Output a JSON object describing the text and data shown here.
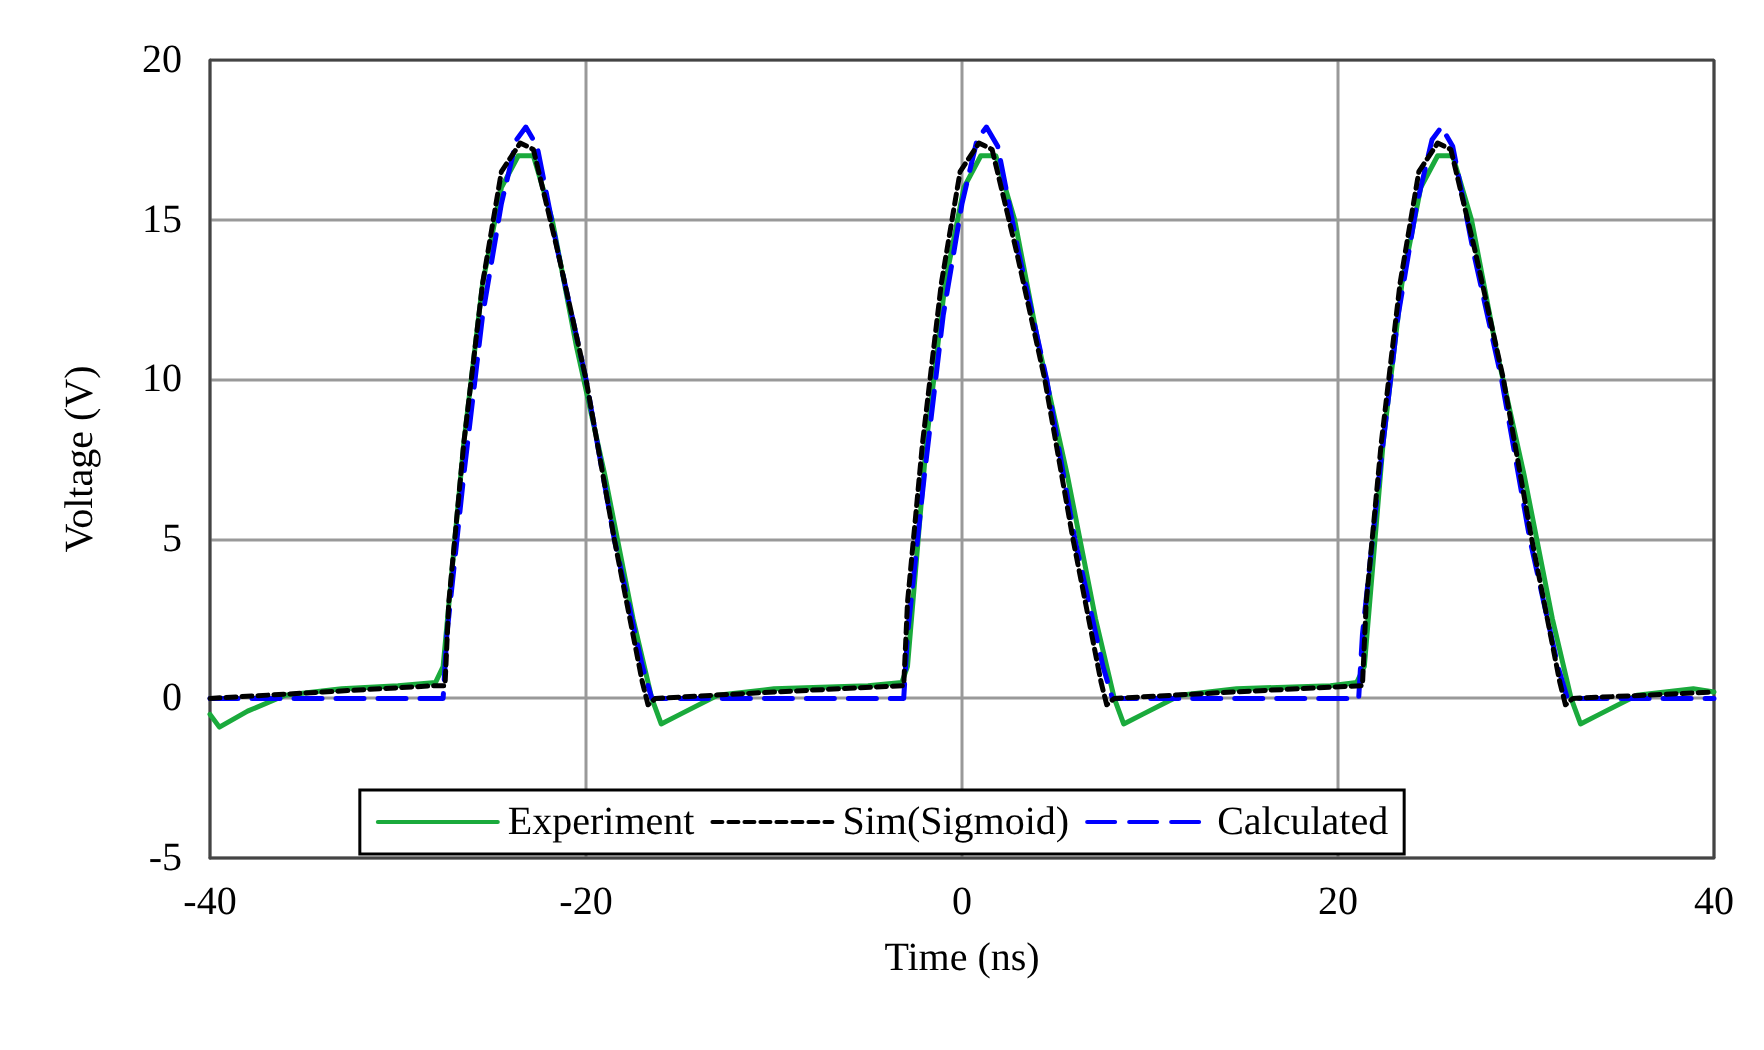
{
  "chart_data": {
    "type": "line",
    "xlabel": "Time (ns)",
    "ylabel": "Voltage (V)",
    "xlim": [
      -40,
      40
    ],
    "xticks": [
      -40,
      -20,
      0,
      20,
      40
    ],
    "ylim": [
      -5,
      20
    ],
    "yticks": [
      -5,
      0,
      5,
      10,
      15,
      20
    ],
    "grid": true,
    "legend": "bottom",
    "marker": "none",
    "series": [
      {
        "name": "Experiment",
        "color": "#1aaa3c",
        "line_style": "solid",
        "x": [
          -40,
          -39.5,
          -38,
          -36,
          -33,
          -30,
          -28,
          -27.6,
          -26.5,
          -25.5,
          -24.5,
          -23.6,
          -22.8,
          -21.8,
          -20.5,
          -19,
          -17.5,
          -16.5,
          -16,
          -15,
          -13,
          -10,
          -5,
          -3.2,
          -2.9,
          -1.9,
          -0.9,
          0.1,
          1,
          1.8,
          2.8,
          4.1,
          5.6,
          7.1,
          8.1,
          8.6,
          9.6,
          11.6,
          14.6,
          19.6,
          21,
          21.4,
          22.4,
          23.4,
          24.4,
          25.3,
          26.1,
          27.1,
          28.4,
          29.9,
          31.4,
          32.4,
          32.9,
          33.9,
          35.9,
          38.9,
          40
        ],
        "values": [
          -0.5,
          -0.9,
          -0.4,
          0.1,
          0.3,
          0.4,
          0.5,
          1,
          8,
          13,
          16,
          17,
          17,
          15,
          11,
          7,
          2.5,
          0,
          -0.8,
          -0.5,
          0.1,
          0.3,
          0.4,
          0.5,
          1,
          8,
          13,
          16,
          17,
          17,
          15,
          11,
          7,
          2.5,
          0,
          -0.8,
          -0.5,
          0.1,
          0.3,
          0.4,
          0.5,
          1,
          8,
          13,
          16,
          17,
          17,
          15,
          11,
          7,
          2.5,
          0,
          -0.8,
          -0.5,
          0.1,
          0.3,
          0.2
        ]
      },
      {
        "name": "Sim(Sigmoid)",
        "color": "#000000",
        "line_style": "dashed",
        "x": [
          -40,
          -34,
          -28,
          -27.5,
          -27.3,
          -26.5,
          -25.5,
          -24.5,
          -23.5,
          -22.8,
          -21.5,
          -20,
          -18.5,
          -17,
          -16.7,
          -16.3,
          -10,
          -3.1,
          -2.9,
          -2.1,
          -1.1,
          -0.1,
          0.9,
          1.6,
          2.9,
          4.4,
          5.9,
          7.4,
          7.7,
          8.1,
          14.4,
          21.3,
          21.5,
          22.3,
          23.3,
          24.3,
          25.3,
          26,
          27.3,
          28.8,
          30.3,
          31.8,
          32.1,
          32.5,
          40
        ],
        "values": [
          0,
          0.2,
          0.4,
          0.4,
          3,
          8,
          13,
          16.5,
          17.4,
          17.2,
          14,
          10,
          5,
          0.5,
          -0.2,
          0,
          0.2,
          0.4,
          3,
          8,
          13,
          16.5,
          17.4,
          17.2,
          14,
          10,
          5,
          0.5,
          -0.2,
          0,
          0.2,
          0.4,
          3,
          8,
          13,
          16.5,
          17.4,
          17.2,
          14,
          10,
          5,
          0.5,
          -0.2,
          0,
          0.2
        ]
      },
      {
        "name": "Calculated",
        "color": "#0000ff",
        "line_style": "dashed",
        "x": [
          -40,
          -27.6,
          -27.4,
          -26.5,
          -25.5,
          -24.5,
          -23.7,
          -23.2,
          -22.6,
          -21.5,
          -20,
          -18.5,
          -17,
          -16.5,
          -3.1,
          -2.9,
          -2,
          -1,
          0,
          0.8,
          1.3,
          1.9,
          3,
          4.5,
          6,
          7.5,
          8,
          21.1,
          21.3,
          22.2,
          23.2,
          24.2,
          25,
          25.5,
          26.1,
          27.2,
          28.7,
          30.2,
          31.7,
          32.2,
          40
        ],
        "values": [
          0,
          0,
          2,
          7,
          12,
          15.5,
          17.5,
          17.9,
          17.3,
          14,
          10,
          5,
          1,
          0,
          0,
          2,
          7,
          12,
          15.5,
          17.5,
          17.9,
          17.3,
          14,
          10,
          5,
          1,
          0,
          0,
          2,
          7,
          12,
          15.5,
          17.5,
          17.9,
          17.3,
          14,
          10,
          5,
          1,
          0,
          0
        ]
      }
    ]
  }
}
